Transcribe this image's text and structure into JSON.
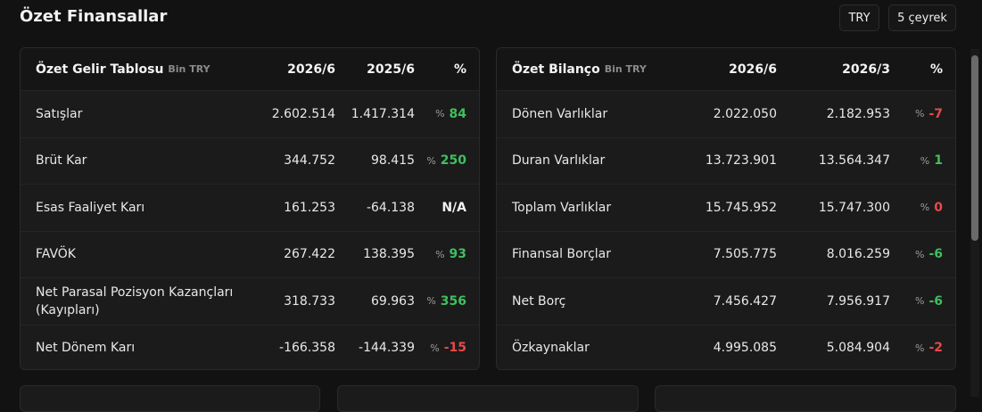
{
  "header": {
    "title": "Özet Finansallar",
    "buttons": [
      "TRY",
      "5 çeyrek"
    ]
  },
  "tables": [
    {
      "title": "Özet Gelir Tablosu",
      "unit": "Bin TRY",
      "columns": [
        "2026/6",
        "2025/6",
        "%"
      ],
      "rows": [
        {
          "label": "Satışlar",
          "values": [
            "2.602.514",
            "1.417.314"
          ],
          "symbol": "%",
          "change": "84",
          "color": "#3fbf5f"
        },
        {
          "label": "Brüt Kar",
          "values": [
            "344.752",
            "98.415"
          ],
          "symbol": "%",
          "change": "250",
          "color": "#3fbf5f"
        },
        {
          "label": "Esas Faaliyet Karı",
          "values": [
            "161.253",
            "-64.138"
          ],
          "change": "N/A",
          "color": "#f2f2f2"
        },
        {
          "label": "FAVÖK",
          "values": [
            "267.422",
            "138.395"
          ],
          "symbol": "%",
          "change": "93",
          "color": "#3fbf5f"
        },
        {
          "label": "Net Parasal Pozisyon Kazançları (Kayıpları)",
          "values": [
            "318.733",
            "69.963"
          ],
          "symbol": "%",
          "change": "356",
          "color": "#3fbf5f"
        },
        {
          "label": "Net Dönem Karı",
          "values": [
            "-166.358",
            "-144.339"
          ],
          "symbol": "%",
          "change": "-15",
          "color": "#e84848"
        }
      ]
    },
    {
      "title": "Özet Bilanço",
      "unit": "Bin TRY",
      "columns": [
        "2026/6",
        "2026/3",
        "%"
      ],
      "rows": [
        {
          "label": "Dönen Varlıklar",
          "values": [
            "2.022.050",
            "2.182.953"
          ],
          "symbol": "%",
          "change": "-7",
          "color": "#e84848"
        },
        {
          "label": "Duran Varlıklar",
          "values": [
            "13.723.901",
            "13.564.347"
          ],
          "symbol": "%",
          "change": "1",
          "color": "#3fbf5f"
        },
        {
          "label": "Toplam Varlıklar",
          "values": [
            "15.745.952",
            "15.747.300"
          ],
          "symbol": "%",
          "change": "0",
          "color": "#e84848"
        },
        {
          "label": "Finansal Borçlar",
          "values": [
            "7.505.775",
            "8.016.259"
          ],
          "symbol": "%",
          "change": "-6",
          "color": "#3fbf5f"
        },
        {
          "label": "Net Borç",
          "values": [
            "7.456.427",
            "7.956.917"
          ],
          "symbol": "%",
          "change": "-6",
          "color": "#3fbf5f"
        },
        {
          "label": "Özkaynaklar",
          "values": [
            "4.995.085",
            "5.084.904"
          ],
          "symbol": "%",
          "change": "-2",
          "color": "#e84848"
        }
      ]
    }
  ]
}
